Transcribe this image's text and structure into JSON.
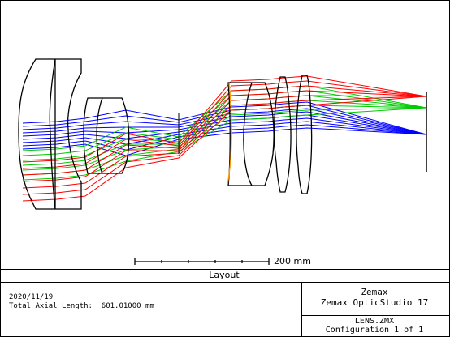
{
  "scale_bar": {
    "label": "200 mm"
  },
  "plot_title": "Layout",
  "footer": {
    "date": "2020/11/19",
    "axial_length": "Total Axial Length:  601.01000 mm",
    "company": "Zemax",
    "product": "Zemax OpticStudio 17",
    "file": "LENS.ZMX",
    "configuration": "Configuration 1 of 1"
  },
  "colors": {
    "field_1": "#0000ff",
    "field_2": "#00cc00",
    "field_3": "#ff0000",
    "stop": "#ff9900",
    "lens": "#000000"
  }
}
